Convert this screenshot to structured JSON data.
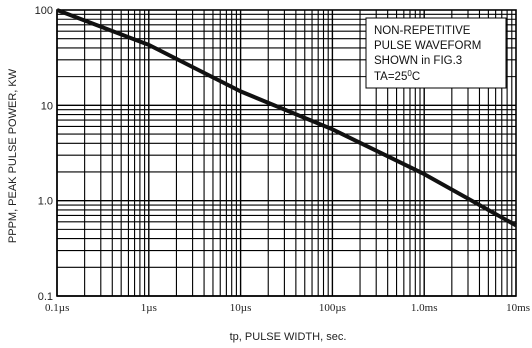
{
  "chart_data": {
    "type": "line",
    "x_scale": "log",
    "y_scale": "log",
    "xlabel": "tp, PULSE WIDTH, sec.",
    "ylabel": "PPPM, PEAK PULSE POWER, KW",
    "x_ticks": [
      "0.1µs",
      "1µs",
      "10µs",
      "100µs",
      "1.0ms",
      "10ms"
    ],
    "y_ticks": [
      "100",
      "10",
      "1.0",
      "0.1"
    ],
    "xlim_seconds": [
      1e-07,
      0.01
    ],
    "ylim_kw": [
      0.1,
      100
    ],
    "grid": true,
    "series": [
      {
        "x_seconds": [
          1e-07,
          1e-06,
          1e-05,
          0.0001,
          0.001,
          0.01
        ],
        "y_kw": [
          100,
          43,
          14,
          5.6,
          1.9,
          0.55
        ]
      }
    ],
    "annotation": {
      "lines": [
        "NON-REPETITIVE",
        "PULSE WAVEFORM",
        "SHOWN in FIG.3"
      ],
      "temp_prefix": "TA=25",
      "temp_sup": "0",
      "temp_suffix": "C"
    }
  }
}
